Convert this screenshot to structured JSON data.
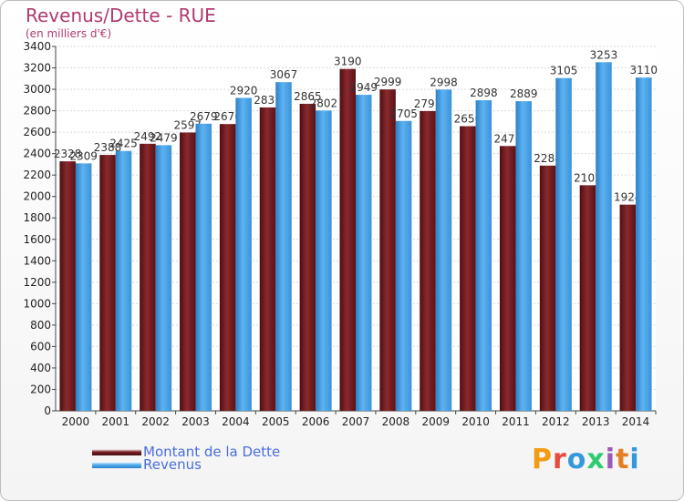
{
  "title": "Revenus/Dette - RUE",
  "subtitle": "(en milliers d'€)",
  "logo": {
    "text": "Proxiti",
    "colors": [
      "#f39c12",
      "#e74c3c",
      "#3498db",
      "#2ecc71",
      "#9b59b6",
      "#e67e22",
      "#3498db"
    ]
  },
  "colors": {
    "dette": "#7a1f22",
    "revenus": "#3a8fd8",
    "title": "#b03a70",
    "legend_text": "#4a6ee0"
  },
  "chart_data": {
    "type": "bar",
    "title": "Revenus/Dette - RUE",
    "subtitle": "(en milliers d'€)",
    "categories": [
      "2000",
      "2001",
      "2002",
      "2003",
      "2004",
      "2005",
      "2006",
      "2007",
      "2008",
      "2009",
      "2010",
      "2011",
      "2012",
      "2013",
      "2014"
    ],
    "series": [
      {
        "name": "Montant de la Dette",
        "values": [
          2328,
          2388,
          2492,
          2597,
          2676,
          2831,
          2865,
          3190,
          2999,
          2797,
          2656,
          2471,
          2288,
          2105,
          1924
        ],
        "labels": [
          "2328",
          "2388",
          "2492",
          "2597",
          "2676",
          "2831",
          "2865",
          "3190",
          "2999",
          "2797",
          "2656",
          "2471",
          "2288",
          "2105",
          "1924"
        ]
      },
      {
        "name": "Revenus",
        "values": [
          2309,
          2425,
          2479,
          2679,
          2920,
          3067,
          2802,
          2949,
          2705,
          2998,
          2898,
          2889,
          3105,
          3253,
          3110
        ],
        "labels": [
          "2309",
          "2425",
          "2479",
          "2679",
          "2920",
          "3067",
          "2802",
          "2949",
          "2705",
          "2998",
          "2898",
          "2889",
          "3105",
          "3253",
          "3110"
        ]
      }
    ],
    "ylim": [
      0,
      3400
    ],
    "yticks": [
      0,
      200,
      400,
      600,
      800,
      1000,
      1200,
      1400,
      1600,
      1800,
      2000,
      2200,
      2400,
      2600,
      2800,
      3000,
      3200,
      3400
    ],
    "grid": true,
    "legend": "bottom-left"
  }
}
